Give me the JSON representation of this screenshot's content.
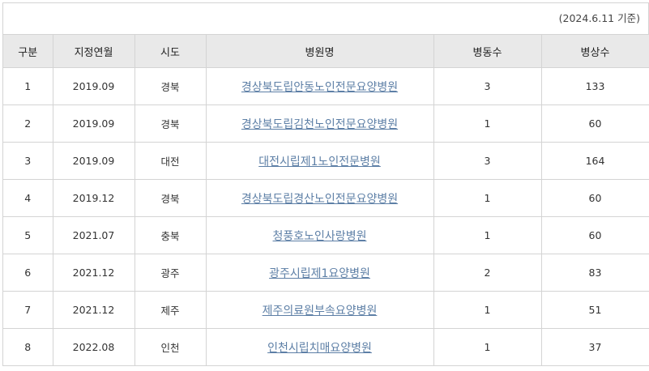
{
  "basis": "(2024.6.11 기준)",
  "columns": [
    "구분",
    "지정연월",
    "시도",
    "병원명",
    "병동수",
    "병상수"
  ],
  "rows": [
    [
      "1",
      "2019.09",
      "경북",
      "경상북도립안동노인전문요양병원",
      "3",
      "133"
    ],
    [
      "2",
      "2019.09",
      "경북",
      "경상북도립김천노인전문요양병원",
      "1",
      "60"
    ],
    [
      "3",
      "2019.09",
      "대전",
      "대전시립제1노인전문병원",
      "3",
      "164"
    ],
    [
      "4",
      "2019.12",
      "경북",
      "경상북도립경산노인전문요양병원",
      "1",
      "60"
    ],
    [
      "5",
      "2021.07",
      "충북",
      "청풍호노인사랑병원",
      "1",
      "60"
    ],
    [
      "6",
      "2021.12",
      "광주",
      "광주시립제1요양병원",
      "2",
      "83"
    ],
    [
      "7",
      "2021.12",
      "제주",
      "제주의료원부속요양병원",
      "1",
      "51"
    ],
    [
      "8",
      "2022.08",
      "인천",
      "인천시립치매요양병원",
      "1",
      "37"
    ]
  ],
  "colors": {
    "link": "#5d7fa6",
    "header_bg": "#e9e9e9",
    "border": "#d4d4d4"
  }
}
